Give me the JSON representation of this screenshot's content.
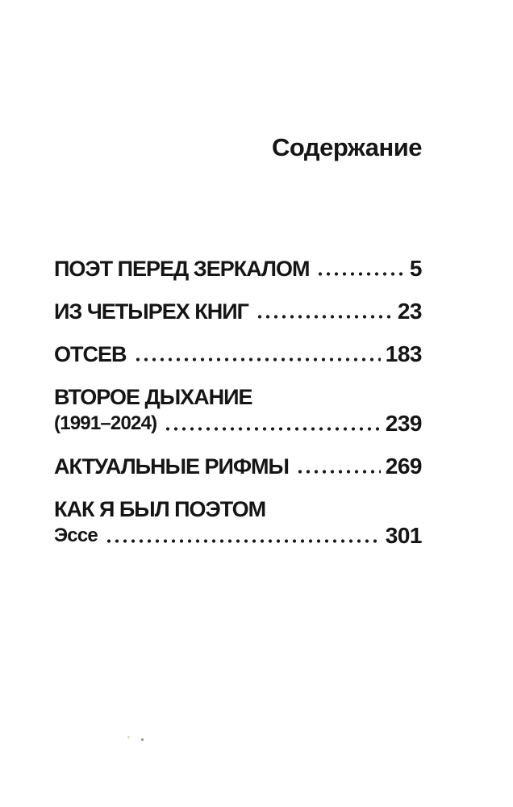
{
  "page": {
    "title": "Содержание",
    "toc": {
      "entries": [
        {
          "title": "ПОЭТ ПЕРЕД ЗЕРКАЛОМ",
          "page": "5"
        },
        {
          "title": "ИЗ ЧЕТЫРЕХ КНИГ",
          "page": "23"
        },
        {
          "title": "ОТСЕВ",
          "page": "183"
        },
        {
          "title": "ВТОРОЕ ДЫХАНИЕ",
          "subtitle": "(1991–2024)",
          "page": "239"
        },
        {
          "title": "АКТУАЛЬНЫЕ РИФМЫ",
          "page": "269"
        },
        {
          "title": "КАК Я БЫЛ ПОЭТОМ",
          "subtitle": "Эссе",
          "page": "301"
        }
      ]
    },
    "colors": {
      "background": "#ffffff",
      "text": "#151515",
      "dots": "#1a1a1a"
    }
  }
}
